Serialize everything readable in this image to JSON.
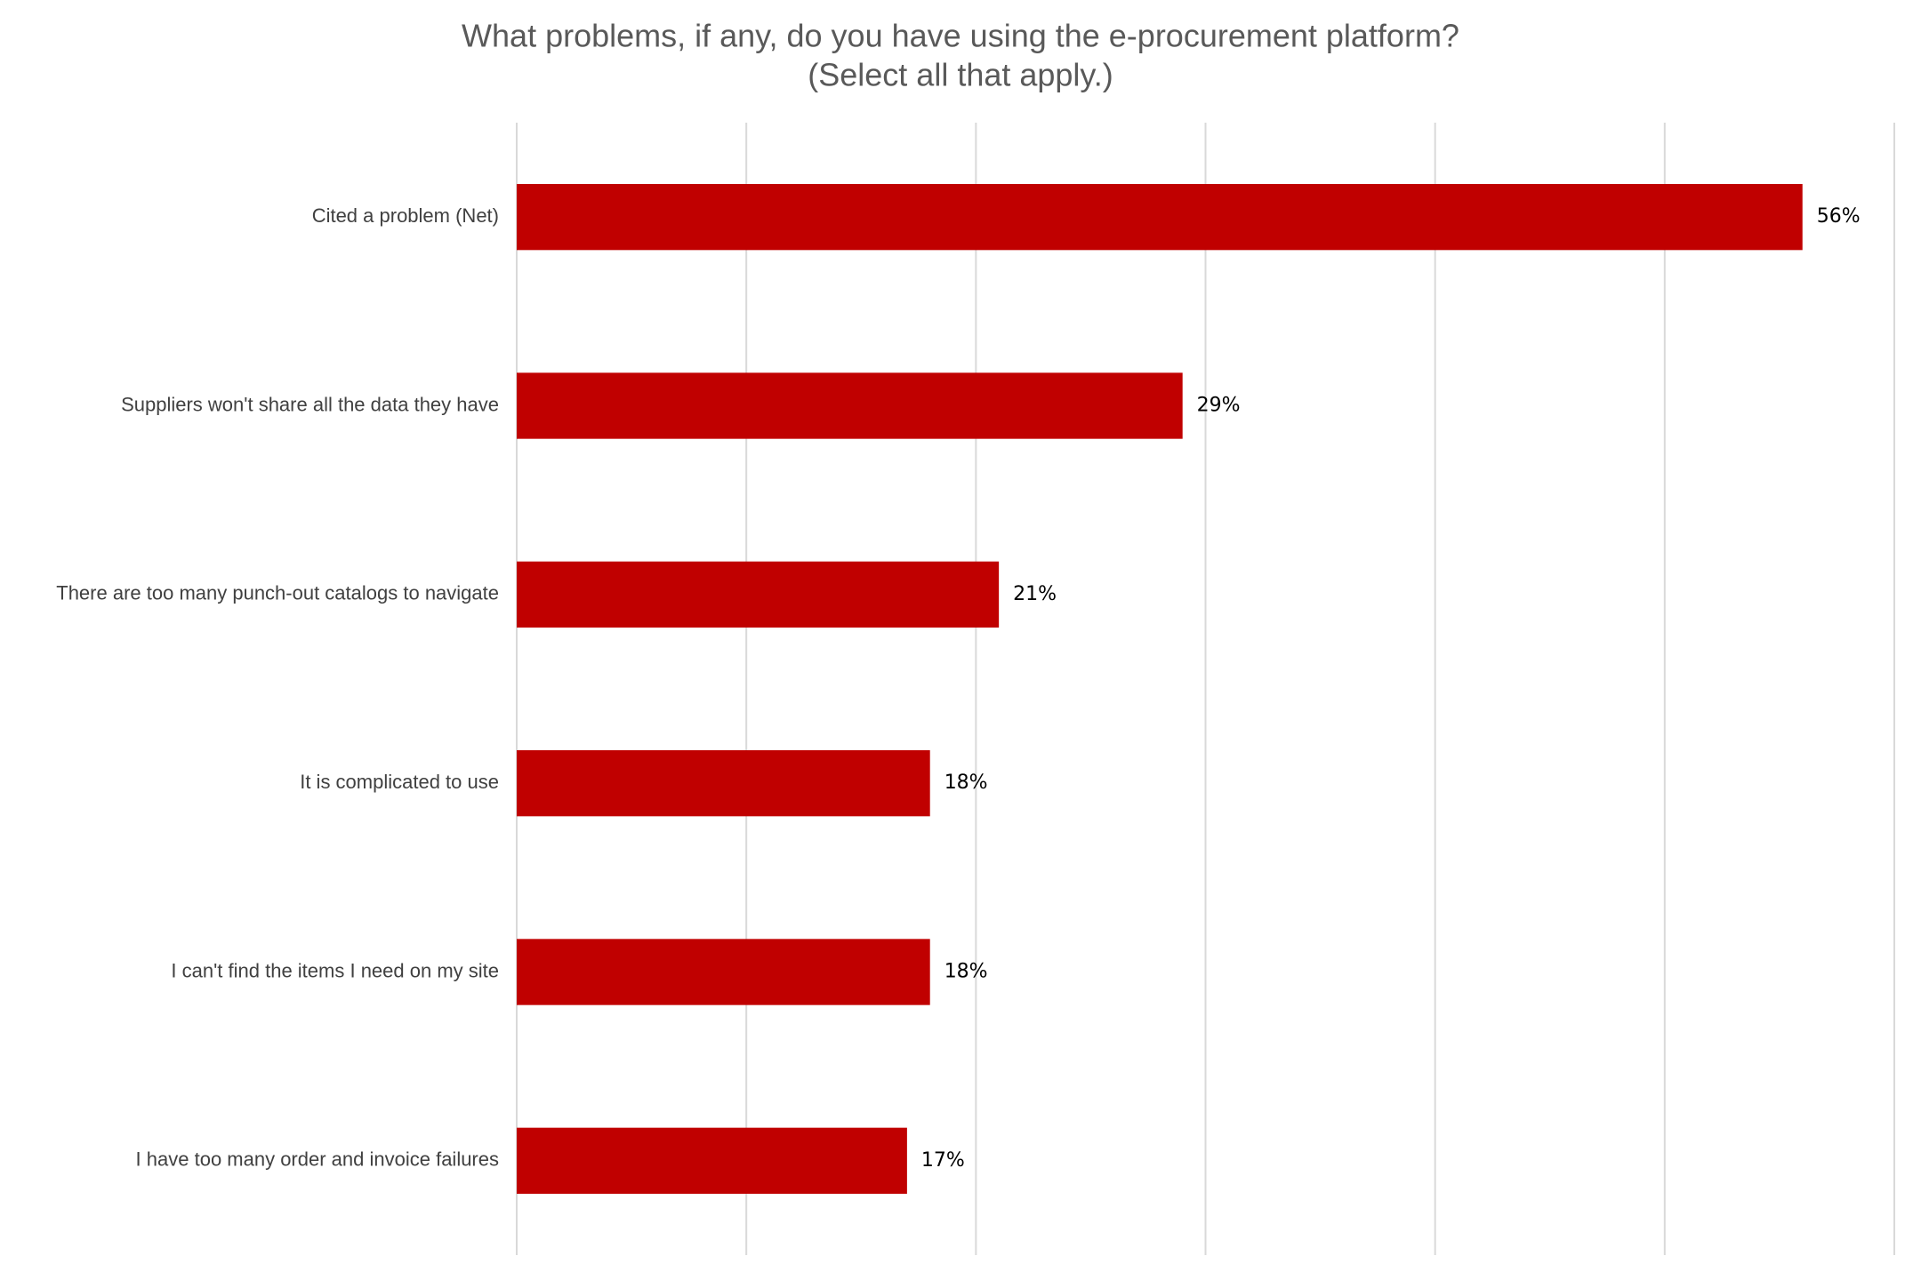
{
  "chart_data": {
    "type": "hbar",
    "title": "What problems, if any, do you have using the e-procurement platform?",
    "subtitle": "(Select all that apply.)",
    "categories": [
      "Cited a problem (Net)",
      "Suppliers won't share all the data they have",
      "There are too many punch-out catalogs to navigate",
      "It is complicated to use",
      "I can't find the items I need on my site",
      "I have too many order and invoice failures"
    ],
    "values": [
      56,
      29,
      21,
      18,
      18,
      17
    ],
    "value_labels": [
      "56%",
      "29%",
      "21%",
      "18%",
      "18%",
      "17%"
    ],
    "color": "#c00000",
    "xlim": [
      0,
      60
    ],
    "xticks": [
      0,
      10,
      20,
      30,
      40,
      50,
      60
    ],
    "grid": true
  }
}
